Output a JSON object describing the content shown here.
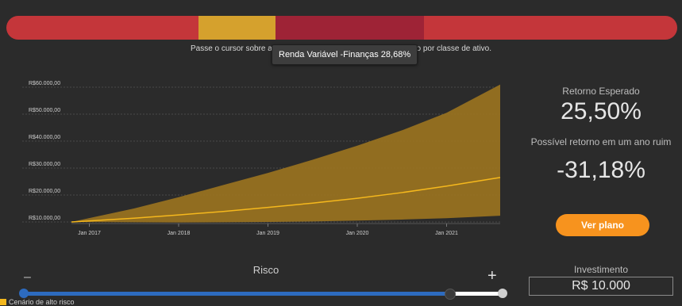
{
  "allocation": {
    "segments": [
      {
        "name": "segment-1",
        "color": "#c4363a",
        "share": 28.68
      },
      {
        "name": "segment-2",
        "color": "#d5a12d",
        "share": 11.48
      },
      {
        "name": "segment-3",
        "color": "#9e2336",
        "share": 22.04
      },
      {
        "name": "segment-4",
        "color": "#c4363a",
        "share": 37.8
      }
    ],
    "tooltip": "Renda Variável -Finanças 28,68%"
  },
  "hint": {
    "before": "Passe o cursor sobre a ba",
    "after": "fólio por classe de ativo."
  },
  "chart_data": {
    "type": "area",
    "x_ticks": [
      "Jan 2017",
      "Jan 2018",
      "Jan 2019",
      "Jan 2020",
      "Jan 2021"
    ],
    "y_ticks": [
      "R$10.000,00",
      "R$20.000,00",
      "R$30.000,00",
      "R$40.000,00",
      "R$50.000,00",
      "R$60.000,00"
    ],
    "ylim": [
      10000,
      60000
    ],
    "x_range": [
      2016.8,
      2021.6
    ],
    "grid": true,
    "series": [
      {
        "role": "upper",
        "x": [
          2016.8,
          2017.5,
          2018.0,
          2018.5,
          2019.0,
          2019.5,
          2020.0,
          2020.5,
          2021.0,
          2021.6
        ],
        "y": [
          10000,
          15000,
          19200,
          23700,
          28200,
          33100,
          38300,
          44000,
          50500,
          61000
        ]
      },
      {
        "role": "expected",
        "x": [
          2016.8,
          2017.5,
          2018.0,
          2018.5,
          2019.0,
          2019.5,
          2020.0,
          2020.5,
          2021.0,
          2021.6
        ],
        "y": [
          10000,
          11400,
          12600,
          13900,
          15400,
          17000,
          18800,
          20900,
          23300,
          26500
        ]
      },
      {
        "role": "lower",
        "x": [
          2016.8,
          2017.5,
          2018.0,
          2018.5,
          2019.0,
          2019.5,
          2020.0,
          2020.5,
          2021.0,
          2021.6
        ],
        "y": [
          10000,
          9900,
          9800,
          9900,
          10000,
          10200,
          10500,
          10900,
          11400,
          12300
        ]
      }
    ],
    "colors": {
      "band": "#9c741f",
      "expected_line": "#f5b81d",
      "grid": "#4a4a4a",
      "tick_label": "#cfcfcf"
    }
  },
  "stats": {
    "expected_return_label": "Retorno Esperado",
    "expected_return_value": "25,50%",
    "bad_year_label": "Possível retorno em um ano ruim",
    "bad_year_value": "-31,18%"
  },
  "plan_button": "Ver plano",
  "risk": {
    "label": "Risco",
    "minus": "–",
    "plus": "+",
    "level": 0.89
  },
  "investment": {
    "label": "Investimento",
    "value": "R$ 10.000"
  },
  "legend": {
    "label": "Cenário de alto risco",
    "color": "#f5b81d"
  }
}
